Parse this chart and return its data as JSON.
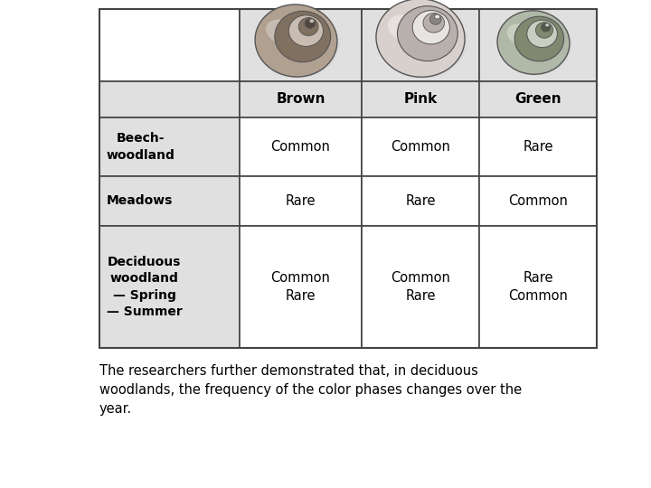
{
  "col_headers": [
    "Brown",
    "Pink",
    "Green"
  ],
  "row_headers": [
    "Beech-\nwoodland",
    "Meadows",
    "Deciduous\nwoodland\n— Spring\n— Summer"
  ],
  "cells": [
    [
      "Common",
      "Common",
      "Rare"
    ],
    [
      "Rare",
      "Rare",
      "Common"
    ],
    [
      "Common\nRare",
      "Common\nRare",
      "Rare\nCommon"
    ]
  ],
  "header_bg": "#e0e0e0",
  "cell_bg": "#ffffff",
  "border_color": "#444444",
  "caption": "The researchers further demonstrated that, in deciduous\nwoodlands, the frequency of the color phases changes over the\nyear.",
  "caption_fontsize": 10.5,
  "fig_width": 7.2,
  "fig_height": 5.4,
  "dpi": 100
}
